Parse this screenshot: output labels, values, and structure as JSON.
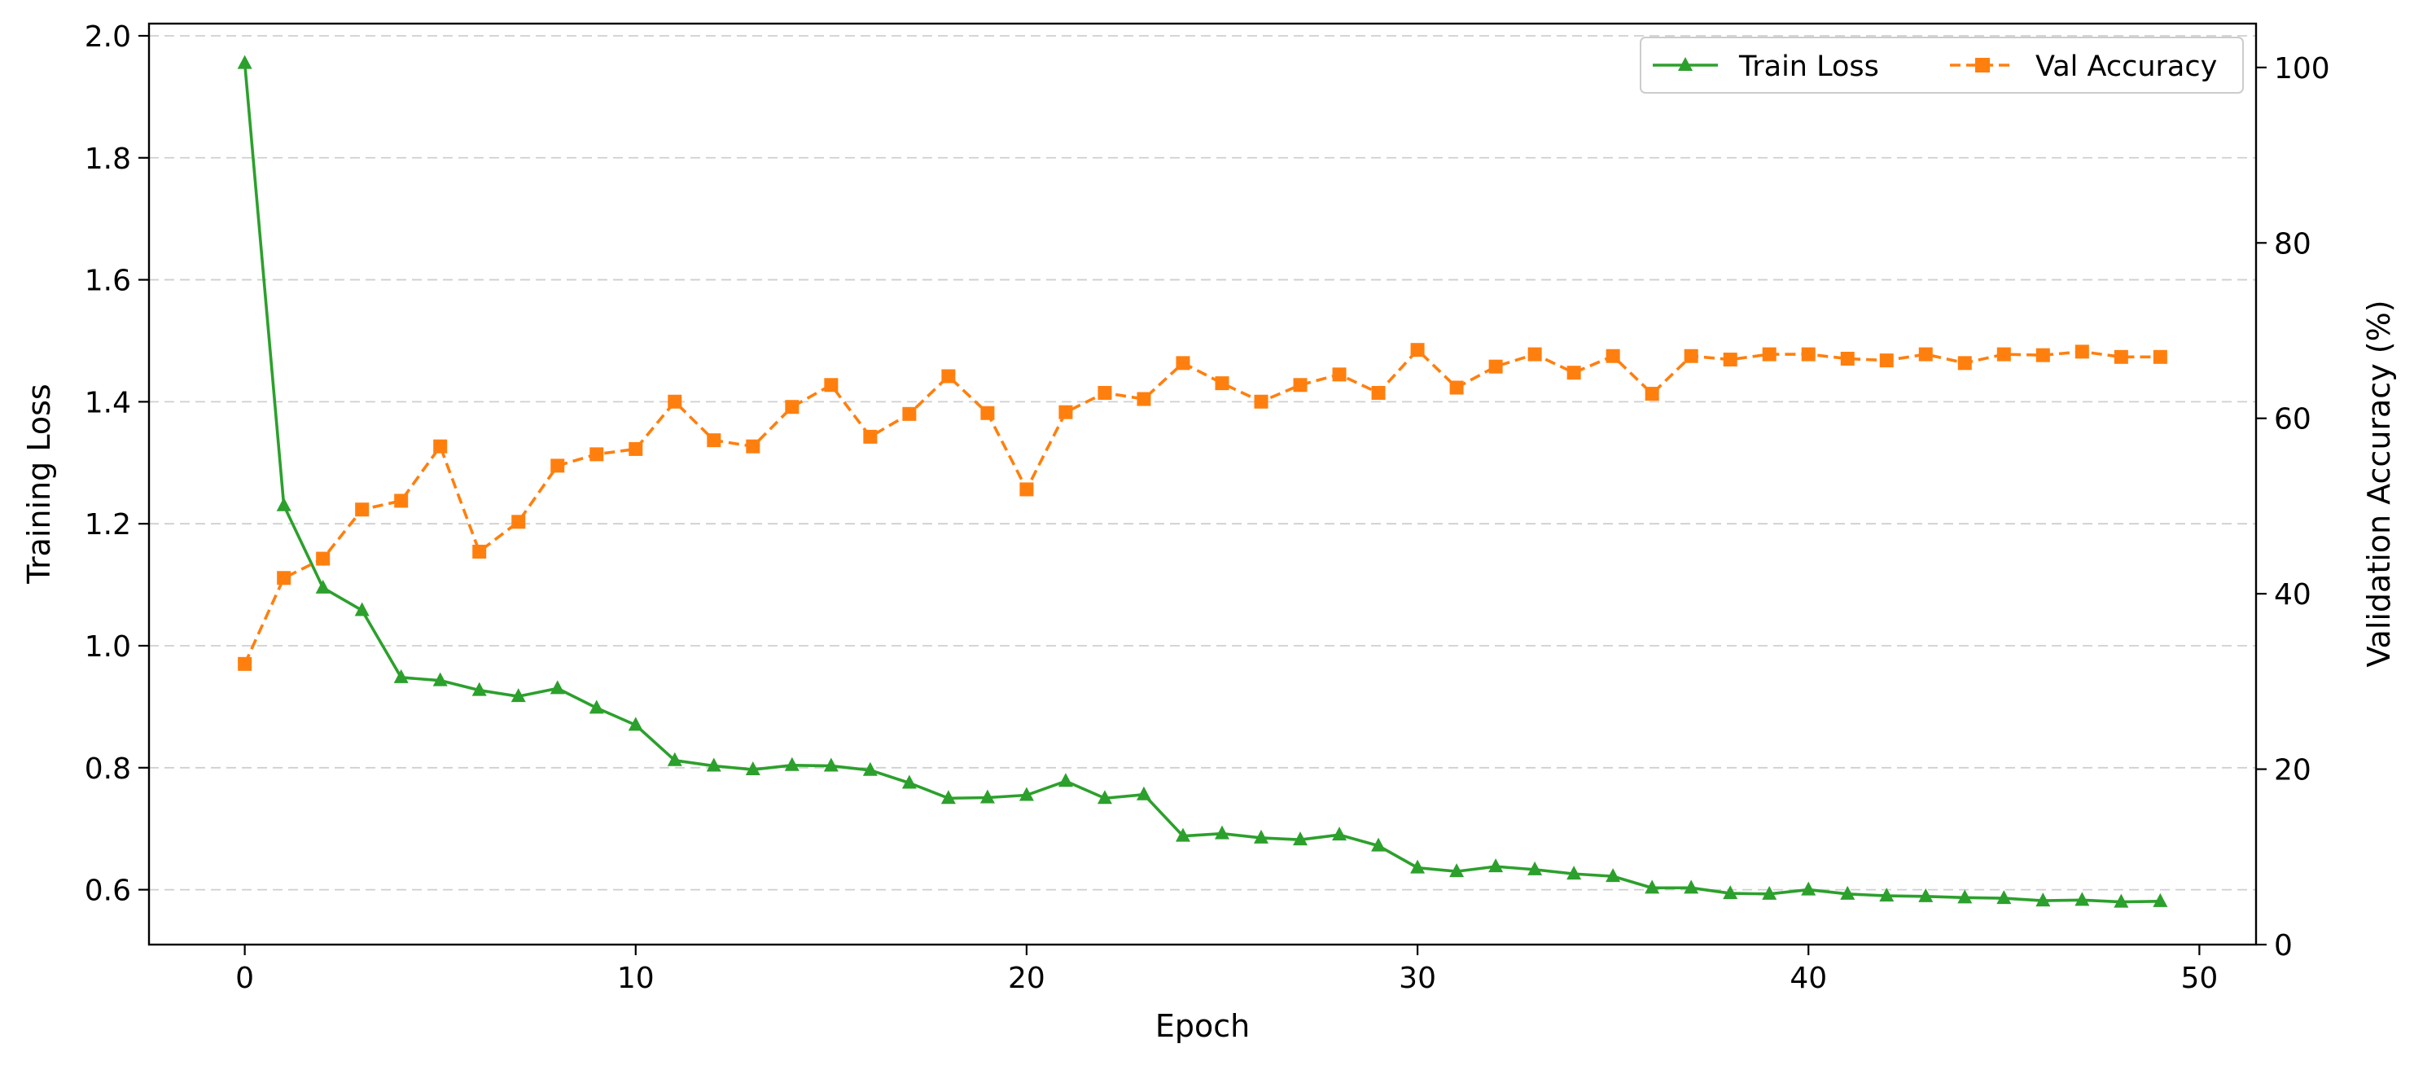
{
  "chart_data": {
    "type": "line",
    "title": "",
    "xlabel": "Epoch",
    "ylabel_left": "Training Loss",
    "ylabel_right": "Validation Accuracy (%)",
    "xlim": [
      -2.45,
      51.45
    ],
    "ylim_left": [
      0.51,
      2.02
    ],
    "ylim_right": [
      0,
      105
    ],
    "xticks": [
      "0",
      "10",
      "20",
      "30",
      "40",
      "50"
    ],
    "yticks_left": [
      "0.6",
      "0.8",
      "1.0",
      "1.2",
      "1.4",
      "1.6",
      "1.8",
      "2.0"
    ],
    "yticks_right": [
      "0",
      "20",
      "40",
      "60",
      "80",
      "100"
    ],
    "grid": "horizontal dashed (left axis)",
    "legend_position": "top-right",
    "x": [
      0,
      1,
      2,
      3,
      4,
      5,
      6,
      7,
      8,
      9,
      10,
      11,
      12,
      13,
      14,
      15,
      16,
      17,
      18,
      19,
      20,
      21,
      22,
      23,
      24,
      25,
      26,
      27,
      28,
      29,
      30,
      31,
      32,
      33,
      34,
      35,
      36,
      37,
      38,
      39,
      40,
      41,
      42,
      43,
      44,
      45,
      46,
      47,
      48,
      49
    ],
    "series": [
      {
        "name": "Train Loss",
        "axis": "left",
        "color": "#2ca02c",
        "marker": "triangle",
        "linestyle": "solid",
        "values": [
          1.955,
          1.23,
          1.095,
          1.058,
          0.948,
          0.943,
          0.927,
          0.917,
          0.93,
          0.898,
          0.87,
          0.812,
          0.803,
          0.797,
          0.804,
          0.803,
          0.796,
          0.775,
          0.75,
          0.751,
          0.755,
          0.778,
          0.75,
          0.756,
          0.688,
          0.692,
          0.685,
          0.682,
          0.69,
          0.672,
          0.636,
          0.63,
          0.638,
          0.633,
          0.626,
          0.622,
          0.603,
          0.603,
          0.594,
          0.593,
          0.6,
          0.593,
          0.59,
          0.589,
          0.587,
          0.586,
          0.582,
          0.583,
          0.58,
          0.581
        ]
      },
      {
        "name": "Val Accuracy",
        "axis": "right",
        "color": "#ff7f0e",
        "marker": "square",
        "linestyle": "dashed",
        "values": [
          32.0,
          41.8,
          44.0,
          49.6,
          50.6,
          56.8,
          44.8,
          48.2,
          54.6,
          55.9,
          56.5,
          61.9,
          57.5,
          56.8,
          61.3,
          63.8,
          57.9,
          60.5,
          64.8,
          60.6,
          51.9,
          60.7,
          62.9,
          62.2,
          66.3,
          64.0,
          61.9,
          63.8,
          65.0,
          62.9,
          67.8,
          63.5,
          65.9,
          67.3,
          65.2,
          67.1,
          62.8,
          67.1,
          66.7,
          67.3,
          67.3,
          66.8,
          66.6,
          67.3,
          66.3,
          67.3,
          67.2,
          67.6,
          67.0,
          67.0
        ]
      }
    ]
  }
}
